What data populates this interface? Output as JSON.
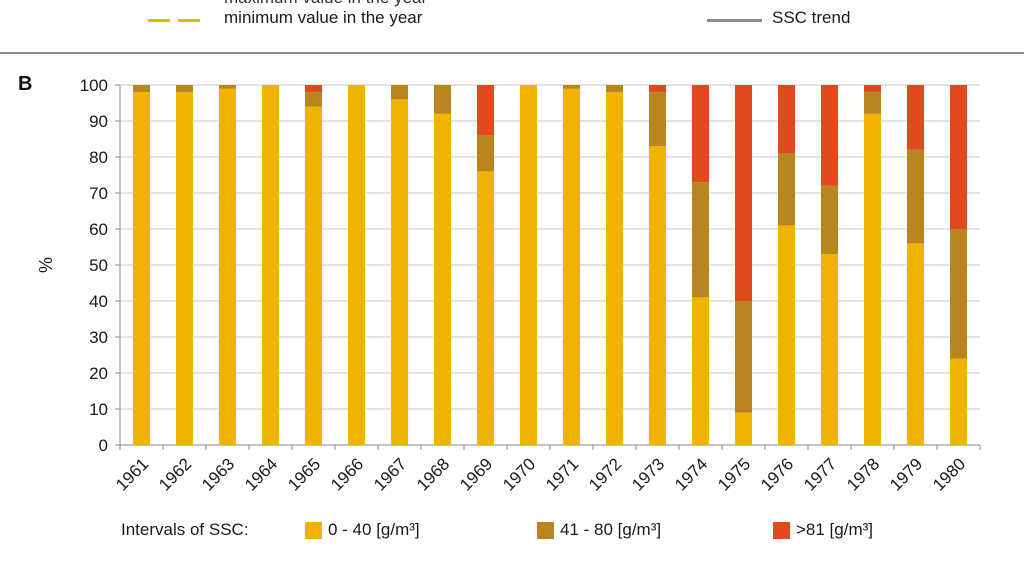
{
  "top_legend": {
    "cut_label": "maximum value in the year",
    "min_label": "minimum value in the year",
    "trend_label": "SSC trend"
  },
  "panel_label": "B",
  "colors": {
    "low": "#f0b400",
    "mid": "#b8861e",
    "high": "#e04a1f",
    "grid": "#c8c8c8",
    "axis": "#8a8a8a"
  },
  "chart_data": {
    "type": "bar",
    "stacked": true,
    "title": "",
    "xlabel": "",
    "ylabel": "%",
    "ylim": [
      0,
      100
    ],
    "yticks": [
      0,
      10,
      20,
      30,
      40,
      50,
      60,
      70,
      80,
      90,
      100
    ],
    "grid": true,
    "categories": [
      "1961",
      "1962",
      "1963",
      "1964",
      "1965",
      "1966",
      "1967",
      "1968",
      "1969",
      "1970",
      "1971",
      "1972",
      "1973",
      "1974",
      "1975",
      "1976",
      "1977",
      "1978",
      "1979",
      "1980"
    ],
    "series": [
      {
        "name": "0 - 40 [g/m³]",
        "color_key": "low",
        "values": [
          98,
          98,
          99,
          100,
          94,
          100,
          96,
          92,
          76,
          100,
          99,
          98,
          83,
          41,
          9,
          61,
          53,
          92,
          56,
          24
        ]
      },
      {
        "name": "41 - 80 [g/m³]",
        "color_key": "mid",
        "values": [
          2,
          2,
          1,
          0,
          4,
          0,
          4,
          8,
          10,
          0,
          1,
          2,
          15,
          32,
          31,
          20,
          19,
          6,
          26,
          36
        ]
      },
      {
        "name": ">81 [g/m³]",
        "color_key": "high",
        "values": [
          0,
          0,
          0,
          0,
          2,
          0,
          0,
          0,
          14,
          0,
          0,
          0,
          2,
          27,
          60,
          19,
          28,
          2,
          18,
          40
        ]
      }
    ],
    "legend_title": "Intervals of SSC:",
    "legend_position": "bottom"
  }
}
